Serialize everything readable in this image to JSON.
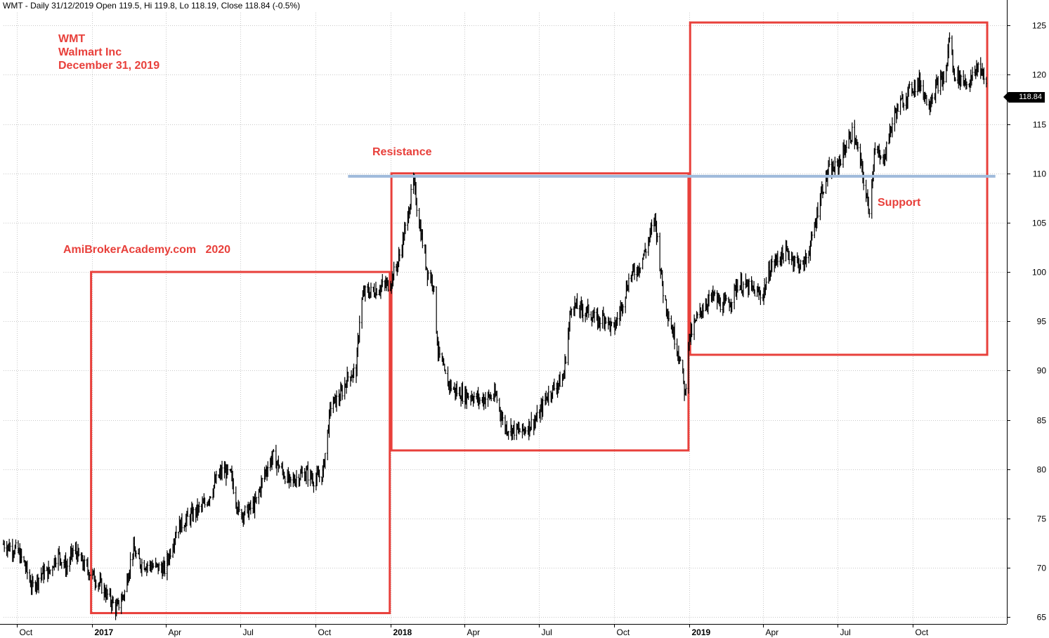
{
  "header": "WMT - Daily 31/12/2019 Open 119.5, Hi 119.8, Lo 118.19, Close 118.84 (-0.5%)",
  "annotations": {
    "ticker": "WMT",
    "company": "Walmart Inc",
    "date": "December 31, 2019",
    "site": "AmiBrokerAcademy.com   2020",
    "resistance": "Resistance",
    "support": "Support"
  },
  "last_price_label": "118.84",
  "colors": {
    "annotation": "#e8403b",
    "box": "#e8403b",
    "support_resistance_line": "#9fbadb",
    "price_bars": "#000000",
    "grid": "#c8c8c8"
  },
  "chart_data": {
    "type": "line",
    "subtype": "ohlc-bars",
    "title": "",
    "xlabel": "",
    "ylabel": "",
    "ylim": [
      64.3,
      126.3
    ],
    "y_ticks": [
      65,
      70,
      75,
      80,
      85,
      90,
      95,
      100,
      105,
      110,
      115,
      120,
      125
    ],
    "x_ticks": [
      {
        "label": "Oct",
        "date": "2016-10-01",
        "bold": false
      },
      {
        "label": "2017",
        "date": "2017-01-01",
        "bold": true
      },
      {
        "label": "Apr",
        "date": "2017-04-01",
        "bold": false
      },
      {
        "label": "Jul",
        "date": "2017-07-01",
        "bold": false
      },
      {
        "label": "Oct",
        "date": "2017-10-01",
        "bold": false
      },
      {
        "label": "2018",
        "date": "2018-01-01",
        "bold": true
      },
      {
        "label": "Apr",
        "date": "2018-04-01",
        "bold": false
      },
      {
        "label": "Jul",
        "date": "2018-07-01",
        "bold": false
      },
      {
        "label": "Oct",
        "date": "2018-10-01",
        "bold": false
      },
      {
        "label": "2019",
        "date": "2019-01-01",
        "bold": true
      },
      {
        "label": "Apr",
        "date": "2019-04-01",
        "bold": false
      },
      {
        "label": "Jul",
        "date": "2019-07-01",
        "bold": false
      },
      {
        "label": "Oct",
        "date": "2019-10-01",
        "bold": false
      }
    ],
    "x_range": [
      "2016-09-15",
      "2020-01-24"
    ],
    "grid": true,
    "series": [
      {
        "values": [
          [
            "2016-09-15",
            72.4
          ],
          [
            "2016-10-01",
            71.8
          ],
          [
            "2016-10-10",
            70.5
          ],
          [
            "2016-10-20",
            68.0
          ],
          [
            "2016-10-31",
            69.4
          ],
          [
            "2016-11-10",
            69.6
          ],
          [
            "2016-11-20",
            71.5
          ],
          [
            "2016-12-01",
            70.0
          ],
          [
            "2016-12-10",
            71.9
          ],
          [
            "2016-12-20",
            70.5
          ],
          [
            "2016-12-31",
            69.4
          ],
          [
            "2017-01-10",
            68.4
          ],
          [
            "2017-01-20",
            67.2
          ],
          [
            "2017-01-31",
            65.8
          ],
          [
            "2017-02-10",
            67.5
          ],
          [
            "2017-02-20",
            71.9
          ],
          [
            "2017-03-01",
            70.5
          ],
          [
            "2017-03-15",
            70.2
          ],
          [
            "2017-03-31",
            69.8
          ],
          [
            "2017-04-15",
            74.0
          ],
          [
            "2017-05-01",
            75.2
          ],
          [
            "2017-05-20",
            76.5
          ],
          [
            "2017-06-01",
            78.7
          ],
          [
            "2017-06-10",
            79.9
          ],
          [
            "2017-06-20",
            79.3
          ],
          [
            "2017-06-30",
            75.5
          ],
          [
            "2017-07-10",
            75.7
          ],
          [
            "2017-07-20",
            76.5
          ],
          [
            "2017-07-31",
            79.6
          ],
          [
            "2017-08-10",
            81.3
          ],
          [
            "2017-08-20",
            80.0
          ],
          [
            "2017-08-31",
            78.6
          ],
          [
            "2017-09-10",
            79.3
          ],
          [
            "2017-09-20",
            79.6
          ],
          [
            "2017-09-30",
            78.9
          ],
          [
            "2017-10-10",
            79.5
          ],
          [
            "2017-10-20",
            86.5
          ],
          [
            "2017-10-31",
            87.3
          ],
          [
            "2017-11-10",
            89.4
          ],
          [
            "2017-11-20",
            90.0
          ],
          [
            "2017-11-25",
            96.5
          ],
          [
            "2017-11-30",
            97.9
          ],
          [
            "2017-12-10",
            98.0
          ],
          [
            "2017-12-20",
            98.5
          ],
          [
            "2017-12-31",
            98.8
          ],
          [
            "2018-01-10",
            101.0
          ],
          [
            "2018-01-20",
            104.7
          ],
          [
            "2018-01-29",
            109.2
          ],
          [
            "2018-02-05",
            105.0
          ],
          [
            "2018-02-15",
            100.0
          ],
          [
            "2018-02-22",
            99.0
          ],
          [
            "2018-02-28",
            92.0
          ],
          [
            "2018-03-10",
            89.0
          ],
          [
            "2018-03-20",
            88.0
          ],
          [
            "2018-03-31",
            87.5
          ],
          [
            "2018-04-10",
            87.5
          ],
          [
            "2018-04-20",
            87.0
          ],
          [
            "2018-04-30",
            87.3
          ],
          [
            "2018-05-10",
            87.4
          ],
          [
            "2018-05-20",
            84.3
          ],
          [
            "2018-05-31",
            84.0
          ],
          [
            "2018-06-10",
            83.8
          ],
          [
            "2018-06-20",
            84.5
          ],
          [
            "2018-06-30",
            85.2
          ],
          [
            "2018-07-10",
            87.3
          ],
          [
            "2018-07-20",
            88.3
          ],
          [
            "2018-07-31",
            89.2
          ],
          [
            "2018-08-10",
            96.8
          ],
          [
            "2018-08-20",
            96.2
          ],
          [
            "2018-08-31",
            96.0
          ],
          [
            "2018-09-10",
            95.0
          ],
          [
            "2018-09-20",
            95.5
          ],
          [
            "2018-09-30",
            94.0
          ],
          [
            "2018-10-10",
            96.5
          ],
          [
            "2018-10-20",
            99.5
          ],
          [
            "2018-10-31",
            100.5
          ],
          [
            "2018-11-10",
            102.5
          ],
          [
            "2018-11-20",
            105.5
          ],
          [
            "2018-11-30",
            98.0
          ],
          [
            "2018-12-10",
            94.5
          ],
          [
            "2018-12-20",
            91.5
          ],
          [
            "2018-12-27",
            87.5
          ],
          [
            "2018-12-31",
            93.0
          ],
          [
            "2019-01-10",
            95.2
          ],
          [
            "2019-01-20",
            96.8
          ],
          [
            "2019-01-31",
            97.5
          ],
          [
            "2019-02-10",
            96.5
          ],
          [
            "2019-02-20",
            97.0
          ],
          [
            "2019-03-01",
            98.8
          ],
          [
            "2019-03-15",
            98.4
          ],
          [
            "2019-03-31",
            97.5
          ],
          [
            "2019-04-10",
            100.4
          ],
          [
            "2019-04-20",
            101.5
          ],
          [
            "2019-04-30",
            102.0
          ],
          [
            "2019-05-10",
            101.2
          ],
          [
            "2019-05-20",
            100.5
          ],
          [
            "2019-06-01",
            103.5
          ],
          [
            "2019-06-10",
            107.8
          ],
          [
            "2019-06-20",
            110.2
          ],
          [
            "2019-06-30",
            110.6
          ],
          [
            "2019-07-10",
            112.5
          ],
          [
            "2019-07-20",
            114.3
          ],
          [
            "2019-07-31",
            110.4
          ],
          [
            "2019-08-05",
            107.5
          ],
          [
            "2019-08-10",
            106.3
          ],
          [
            "2019-08-15",
            112.5
          ],
          [
            "2019-08-25",
            111.0
          ],
          [
            "2019-09-01",
            113.5
          ],
          [
            "2019-09-10",
            116.2
          ],
          [
            "2019-09-20",
            117.5
          ],
          [
            "2019-09-30",
            118.7
          ],
          [
            "2019-10-10",
            119.2
          ],
          [
            "2019-10-20",
            117.0
          ],
          [
            "2019-10-31",
            119.0
          ],
          [
            "2019-11-10",
            119.7
          ],
          [
            "2019-11-15",
            124.0
          ],
          [
            "2019-11-20",
            120.2
          ],
          [
            "2019-11-30",
            119.5
          ],
          [
            "2019-12-10",
            119.2
          ],
          [
            "2019-12-20",
            121.0
          ],
          [
            "2019-12-31",
            118.84
          ]
        ]
      }
    ],
    "horizontal_line": {
      "value": 109.7,
      "from": "2017-11-10",
      "to": "2020-01-10"
    },
    "boxes": [
      {
        "from": "2016-12-31",
        "to": "2017-12-31",
        "low": 65.4,
        "high": 100.0
      },
      {
        "from": "2018-01-02",
        "to": "2018-12-31",
        "low": 81.9,
        "high": 110.0
      },
      {
        "from": "2019-01-02",
        "to": "2019-12-31",
        "low": 91.6,
        "high": 125.3
      }
    ]
  }
}
